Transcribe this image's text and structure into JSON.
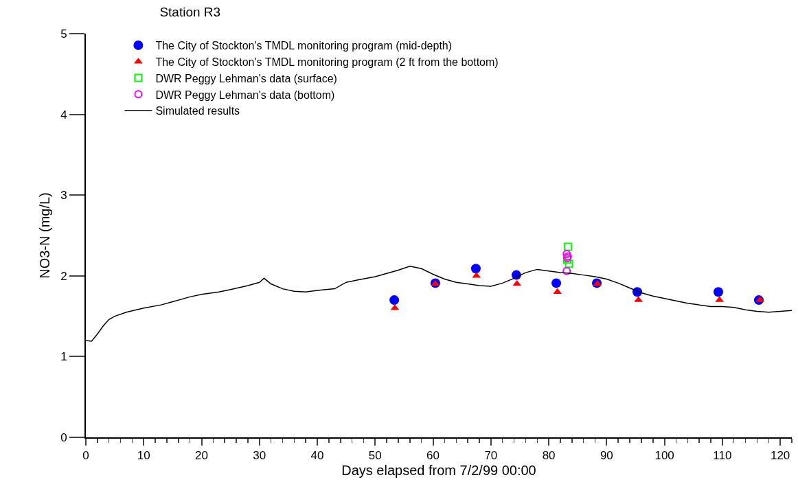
{
  "chart_data": {
    "type": "scatter",
    "title": "Station R3",
    "xlabel": "Days elapsed from 7/2/99 00:00",
    "ylabel": "NO3-N (mg/L)",
    "xlim": [
      0,
      122
    ],
    "ylim": [
      0,
      5
    ],
    "xticks": [
      0,
      {
        "value": 2,
        "label": null
      },
      {
        "value": 4,
        "label": null
      },
      {
        "value": 6,
        "label": null
      },
      {
        "value": 8,
        "label": null
      },
      10,
      {
        "value": 12,
        "label": null
      },
      {
        "value": 14,
        "label": null
      },
      {
        "value": 16,
        "label": null
      },
      {
        "value": 18,
        "label": null
      },
      20,
      {
        "value": 22,
        "label": null
      },
      {
        "value": 24,
        "label": null
      },
      {
        "value": 26,
        "label": null
      },
      {
        "value": 28,
        "label": null
      },
      30,
      {
        "value": 32,
        "label": null
      },
      {
        "value": 34,
        "label": null
      },
      {
        "value": 36,
        "label": null
      },
      {
        "value": 38,
        "label": null
      },
      40,
      {
        "value": 42,
        "label": null
      },
      {
        "value": 44,
        "label": null
      },
      {
        "value": 46,
        "label": null
      },
      {
        "value": 48,
        "label": null
      },
      50,
      {
        "value": 52,
        "label": null
      },
      {
        "value": 54,
        "label": null
      },
      {
        "value": 56,
        "label": null
      },
      {
        "value": 58,
        "label": null
      },
      60,
      {
        "value": 62,
        "label": null
      },
      {
        "value": 64,
        "label": null
      },
      {
        "value": 66,
        "label": null
      },
      {
        "value": 68,
        "label": null
      },
      70,
      {
        "value": 72,
        "label": null
      },
      {
        "value": 74,
        "label": null
      },
      {
        "value": 76,
        "label": null
      },
      {
        "value": 78,
        "label": null
      },
      80,
      {
        "value": 82,
        "label": null
      },
      {
        "value": 84,
        "label": null
      },
      {
        "value": 86,
        "label": null
      },
      {
        "value": 88,
        "label": null
      },
      90,
      {
        "value": 92,
        "label": null
      },
      {
        "value": 94,
        "label": null
      },
      {
        "value": 96,
        "label": null
      },
      {
        "value": 98,
        "label": null
      },
      100,
      {
        "value": 102,
        "label": null
      },
      {
        "value": 104,
        "label": null
      },
      {
        "value": 106,
        "label": null
      },
      {
        "value": 108,
        "label": null
      },
      110,
      {
        "value": 112,
        "label": null
      },
      {
        "value": 114,
        "label": null
      },
      {
        "value": 116,
        "label": null
      },
      {
        "value": 118,
        "label": null
      },
      120,
      {
        "value": 122,
        "label": null
      }
    ],
    "yticks": [
      0,
      1,
      2,
      3,
      4,
      5
    ],
    "grid": false,
    "legend": "top left",
    "series": [
      {
        "name": "The City of Stockton's TMDL monitoring program (mid-depth)",
        "marker": "circle",
        "color": "#0000ff",
        "x": [
          53.3,
          60.4,
          67.4,
          74.4,
          81.3,
          88.3,
          95.3,
          109.3,
          116.3
        ],
        "values": [
          1.7,
          1.91,
          2.09,
          2.01,
          1.91,
          1.91,
          1.8,
          1.8,
          1.7
        ]
      },
      {
        "name": "The City of Stockton's TMDL monitoring program (2 ft from the bottom)",
        "marker": "triangle",
        "color": "#ff0000",
        "x": [
          53.4,
          60.4,
          67.5,
          74.5,
          81.5,
          88.4,
          95.5,
          109.5,
          116.5
        ],
        "values": [
          1.6,
          1.9,
          2.0,
          1.9,
          1.8,
          1.9,
          1.7,
          1.7,
          1.7
        ]
      },
      {
        "name": "DWR Peggy Lehman's data (surface)",
        "marker": "square",
        "color": "#00ff00",
        "x": [
          83.3,
          83.2,
          83.5
        ],
        "values": [
          2.36,
          2.2,
          2.15
        ]
      },
      {
        "name": "DWR Peggy Lehman's data (bottom)",
        "marker": "circle-open",
        "color": "#ff00ff",
        "x": [
          83.1,
          83.3,
          83.2,
          83.1
        ],
        "values": [
          2.27,
          2.24,
          2.22,
          2.06
        ]
      },
      {
        "name": "Simulated results",
        "type": "line",
        "marker": "none",
        "color": "#000000",
        "x": [
          0,
          1,
          2,
          3,
          4,
          5,
          7,
          10,
          13,
          15,
          18,
          20,
          23,
          25,
          28,
          30,
          30.8,
          32,
          34,
          36,
          38,
          40,
          43,
          45,
          47,
          50,
          52,
          54,
          56,
          58,
          60,
          62,
          64,
          66,
          68,
          70,
          72,
          74,
          76,
          78,
          80,
          82,
          84,
          86,
          88,
          90,
          92,
          94,
          96,
          98,
          100,
          102,
          104,
          106,
          108,
          110,
          112,
          114,
          116,
          118,
          120,
          122
        ],
        "values": [
          1.2,
          1.19,
          1.28,
          1.38,
          1.46,
          1.5,
          1.55,
          1.6,
          1.64,
          1.68,
          1.74,
          1.77,
          1.8,
          1.83,
          1.88,
          1.92,
          1.97,
          1.9,
          1.84,
          1.81,
          1.8,
          1.82,
          1.84,
          1.92,
          1.95,
          1.99,
          2.03,
          2.07,
          2.12,
          2.09,
          2.02,
          1.96,
          1.92,
          1.9,
          1.88,
          1.87,
          1.91,
          1.97,
          2.04,
          2.08,
          2.06,
          2.04,
          2.03,
          2.01,
          1.99,
          1.96,
          1.91,
          1.85,
          1.79,
          1.75,
          1.72,
          1.69,
          1.66,
          1.64,
          1.62,
          1.62,
          1.61,
          1.58,
          1.56,
          1.55,
          1.56,
          1.57
        ]
      }
    ]
  }
}
